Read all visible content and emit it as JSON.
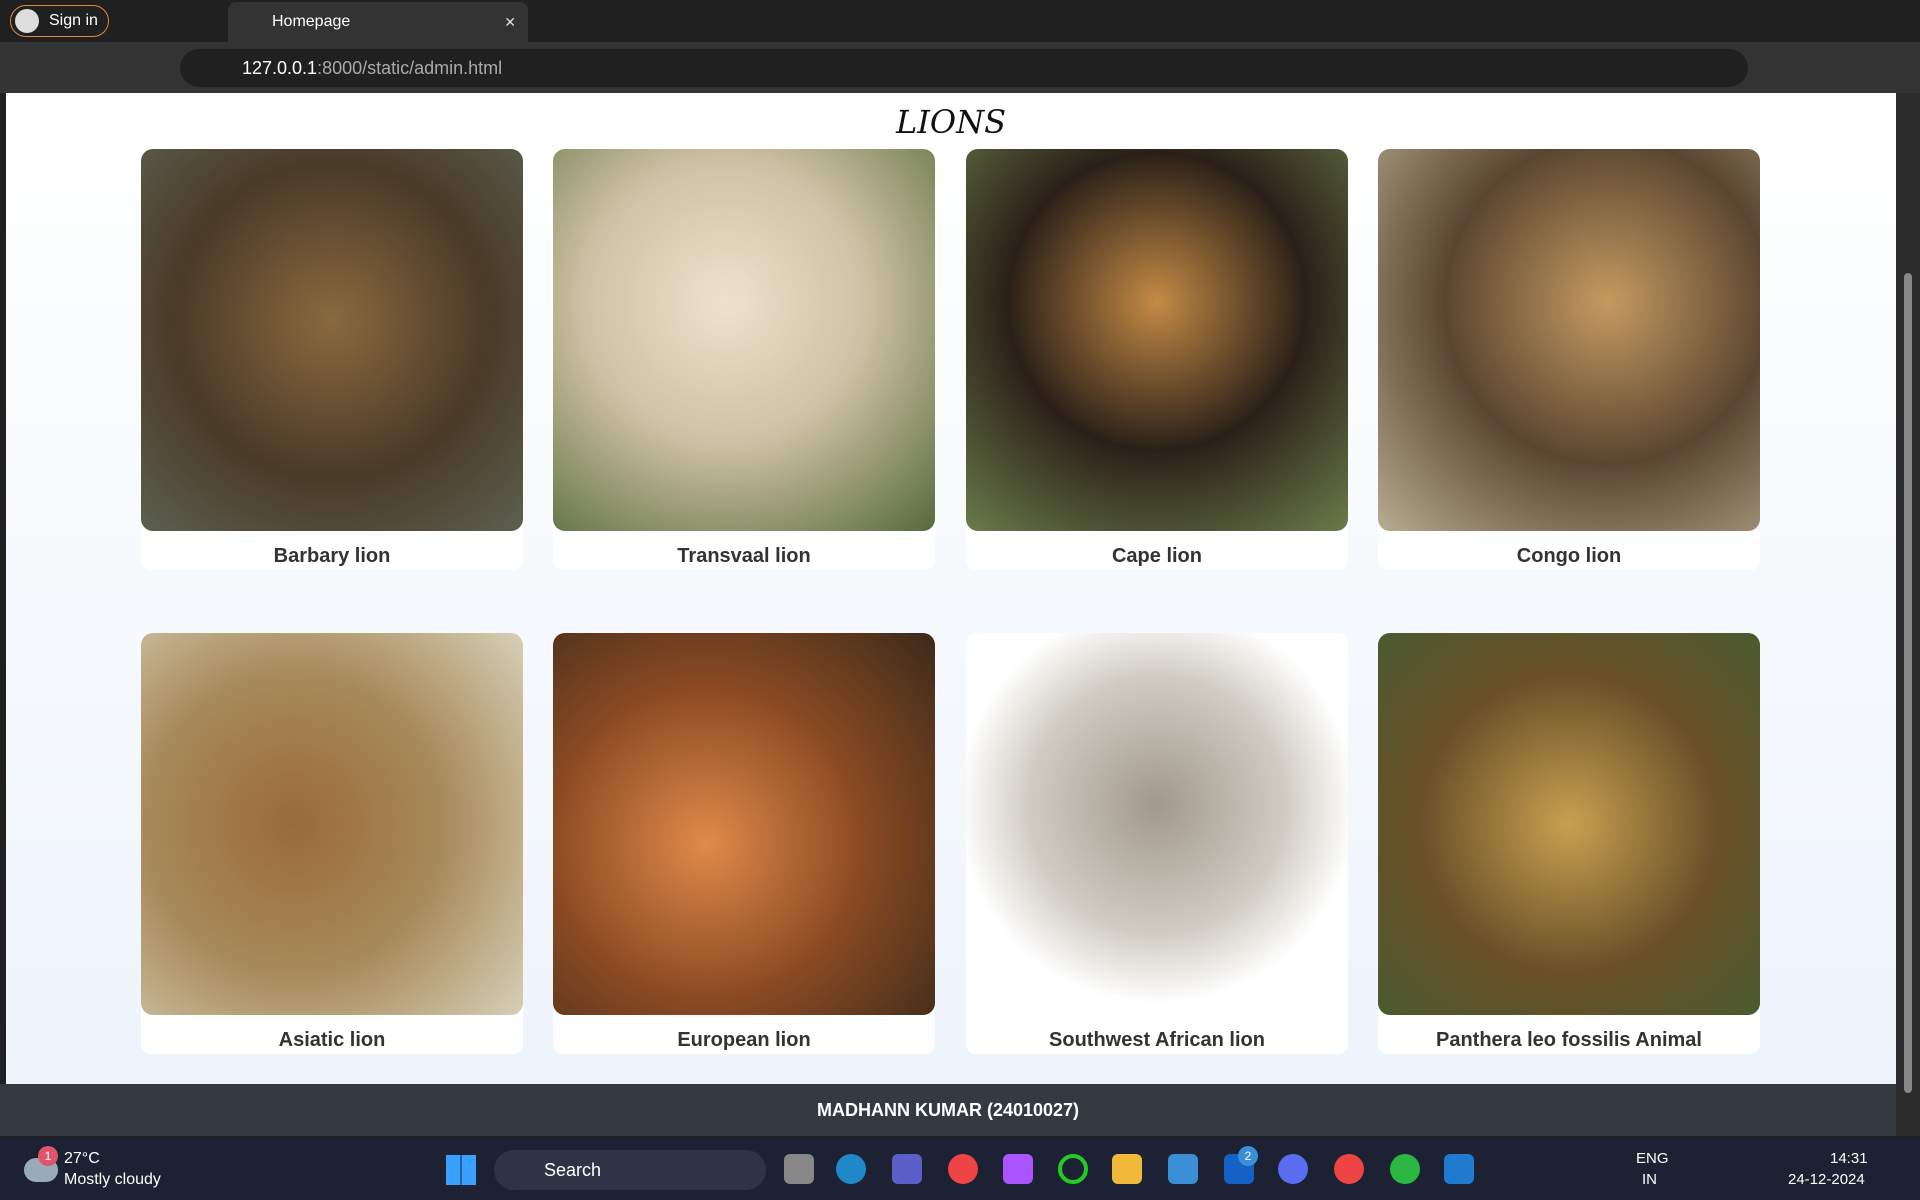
{
  "browser": {
    "sign_in": "Sign in",
    "tab_title": "Homepage",
    "url_host": "127.0.0.1",
    "url_path": ":8000/static/admin.html"
  },
  "page": {
    "title": "LIONS",
    "cards": [
      {
        "name": "Barbary lion"
      },
      {
        "name": "Transvaal lion"
      },
      {
        "name": "Cape lion"
      },
      {
        "name": "Congo lion"
      },
      {
        "name": "Asiatic lion"
      },
      {
        "name": "European lion"
      },
      {
        "name": "Southwest African lion"
      },
      {
        "name": "Panthera leo fossilis Animal"
      }
    ],
    "footer": "MADHANN KUMAR (24010027)"
  },
  "taskbar": {
    "weather_badge": "1",
    "temperature": "27°C",
    "weather": "Mostly cloudy",
    "search": "Search",
    "app_badge": "2",
    "language": "ENG",
    "region": "IN",
    "time": "14:31",
    "date": "24-12-2024"
  }
}
